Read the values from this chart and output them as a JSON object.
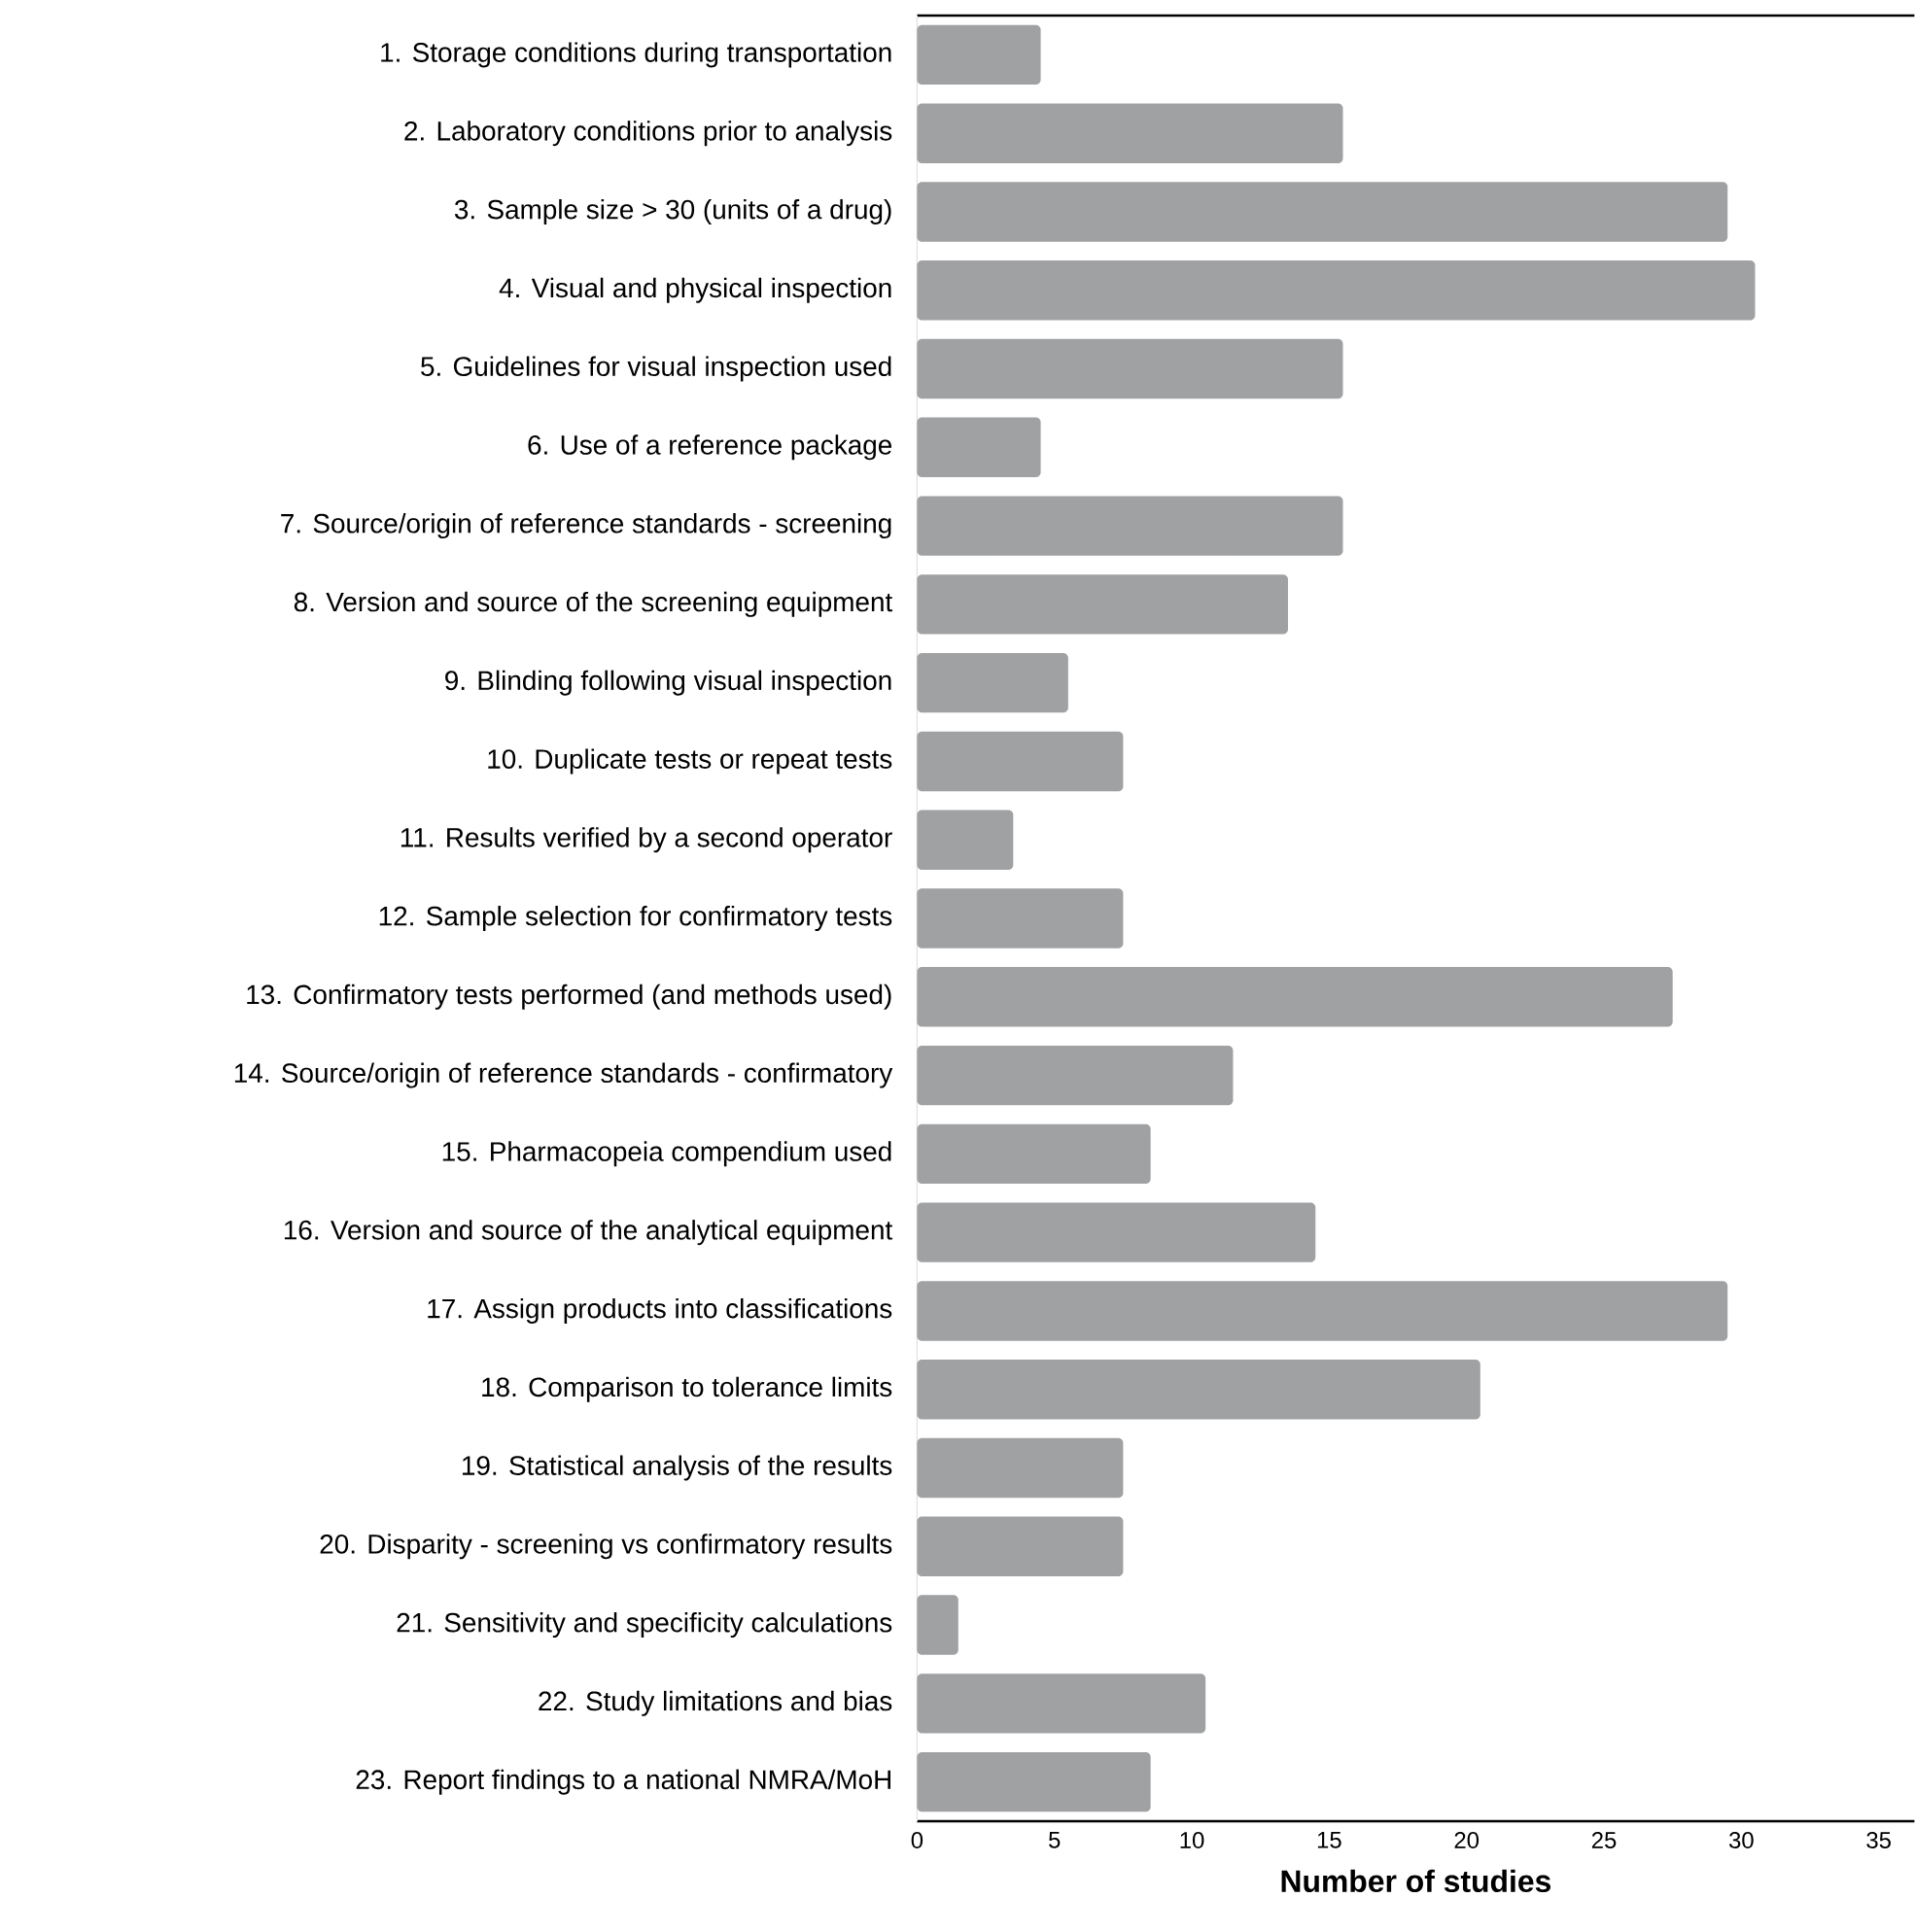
{
  "chart_data": {
    "type": "bar",
    "orientation": "horizontal",
    "xlabel": "Number of studies",
    "color": "#a0a1a3",
    "categories": [
      "1. Storage conditions during transportation",
      "2. Laboratory conditions prior to analysis",
      "3. Sample size > 30 (units of a drug)",
      "4. Visual and physical inspection",
      "5. Guidelines for visual inspection used",
      "6. Use of a reference package",
      "7. Source/origin of reference standards - screening",
      "8. Version and source of the screening equipment",
      "9. Blinding following visual inspection",
      "10. Duplicate tests or repeat tests",
      "11. Results verified by a second operator",
      "12. Sample selection for confirmatory tests",
      "13. Confirmatory tests performed (and methods used)",
      "14. Source/origin of reference standards - confirmatory",
      "15. Pharmacopeia compendium used",
      "16. Version and source of the analytical equipment",
      "17. Assign products into classifications",
      "18. Comparison to tolerance limits",
      "19. Statistical analysis of the results",
      "20. Disparity - screening vs confirmatory results",
      "21. Sensitivity and specificity calculations",
      "22. Study limitations and bias",
      "23. Report findings to a national NMRA/MoH"
    ],
    "values": [
      4.5,
      15.5,
      29.5,
      30.5,
      15.5,
      4.5,
      15.5,
      13.5,
      5.5,
      7.5,
      3.5,
      7.5,
      27.5,
      11.5,
      8.5,
      14.5,
      29.5,
      20.5,
      7.5,
      7.5,
      1.5,
      10.5,
      8.5
    ],
    "xlim": [
      0,
      36.3
    ],
    "xticks": [
      0,
      5,
      10,
      15,
      20,
      25,
      30,
      35
    ]
  }
}
